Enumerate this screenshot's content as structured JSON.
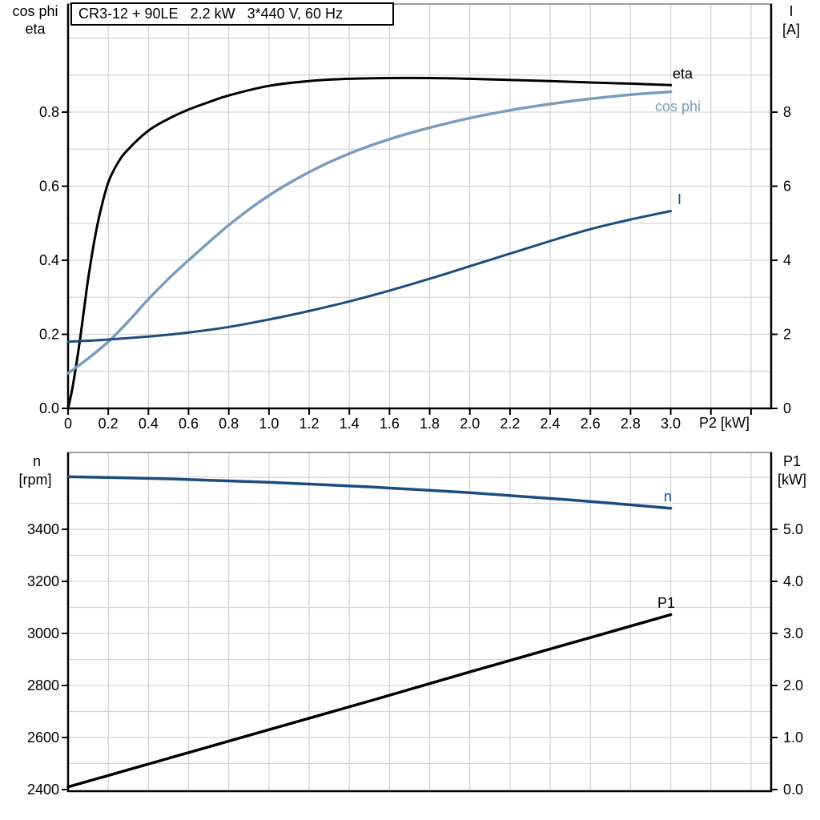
{
  "colors": {
    "black": "#000000",
    "light_blue": "#7b9cbd",
    "dark_blue": "#1b4d7c",
    "grid": "#d6d6d6",
    "frame_top": "#808080",
    "axis": "#000000"
  },
  "chart_data": [
    {
      "type": "line",
      "title": "CR3-12 + 90LE   2.2 kW   3*440 V, 60 Hz",
      "xlabel": "P2 [kW]",
      "xlim": [
        0,
        3.5
      ],
      "grid": true,
      "x_ticks": [
        0,
        0.2,
        0.4,
        0.6,
        0.8,
        1.0,
        1.2,
        1.4,
        1.6,
        1.8,
        2.0,
        2.2,
        2.4,
        2.6,
        2.8,
        3.0
      ],
      "x_tick_labels": [
        "0",
        "0.2",
        "0.4",
        "0.6",
        "0.8",
        "1.0",
        "1.2",
        "1.4",
        "1.6",
        "1.8",
        "2.0",
        "2.2",
        "2.4",
        "2.6",
        "2.8",
        "3.0"
      ],
      "x_unlabeled_ticks": [
        3.2,
        3.4
      ],
      "left_axis": {
        "title_lines": [
          "cos phi",
          "eta"
        ],
        "ticks": [
          0.0,
          0.2,
          0.4,
          0.6,
          0.8
        ],
        "tick_labels": [
          "0.0",
          "0.2",
          "0.4",
          "0.6",
          "0.8"
        ],
        "minor_grid_step": 0.1,
        "lim": [
          0,
          1.092
        ]
      },
      "right_axis": {
        "title_lines": [
          "I",
          "[A]"
        ],
        "ticks": [
          0,
          2,
          4,
          6,
          8
        ],
        "tick_labels": [
          "0",
          "2",
          "4",
          "6",
          "8"
        ],
        "lim": [
          0,
          10.92
        ]
      },
      "series": [
        {
          "name": "eta",
          "axis": "left",
          "color": "#000000",
          "width": 3,
          "x": [
            0,
            0.02,
            0.05,
            0.08,
            0.1,
            0.13,
            0.16,
            0.2,
            0.25,
            0.3,
            0.4,
            0.5,
            0.6,
            0.7,
            0.8,
            1.0,
            1.2,
            1.4,
            1.6,
            1.8,
            2.0,
            2.2,
            2.4,
            2.6,
            2.8,
            3.0
          ],
          "y": [
            0,
            0.05,
            0.15,
            0.27,
            0.35,
            0.45,
            0.53,
            0.61,
            0.665,
            0.7,
            0.75,
            0.782,
            0.807,
            0.827,
            0.845,
            0.871,
            0.884,
            0.89,
            0.892,
            0.892,
            0.89,
            0.887,
            0.884,
            0.88,
            0.877,
            0.873
          ]
        },
        {
          "name": "cos phi",
          "axis": "left",
          "color": "#7b9cbd",
          "width": 3.5,
          "x": [
            0,
            0.1,
            0.2,
            0.3,
            0.4,
            0.5,
            0.6,
            0.8,
            1.0,
            1.2,
            1.4,
            1.6,
            1.8,
            2.0,
            2.2,
            2.4,
            2.6,
            2.8,
            3.0
          ],
          "y": [
            0.095,
            0.135,
            0.18,
            0.235,
            0.295,
            0.35,
            0.4,
            0.495,
            0.575,
            0.638,
            0.688,
            0.727,
            0.758,
            0.784,
            0.805,
            0.822,
            0.836,
            0.847,
            0.855
          ]
        },
        {
          "name": "I",
          "axis": "right",
          "color": "#1b4d7c",
          "width": 3,
          "x": [
            0,
            0.2,
            0.4,
            0.6,
            0.8,
            1.0,
            1.2,
            1.4,
            1.6,
            1.8,
            2.0,
            2.2,
            2.4,
            2.6,
            2.8,
            3.0
          ],
          "y": [
            1.8,
            1.86,
            1.94,
            2.05,
            2.2,
            2.4,
            2.63,
            2.89,
            3.18,
            3.5,
            3.84,
            4.18,
            4.52,
            4.84,
            5.1,
            5.33
          ]
        }
      ]
    },
    {
      "type": "line",
      "title": "",
      "xlabel": "",
      "xlim": [
        0,
        3.5
      ],
      "grid": true,
      "left_axis": {
        "title_lines": [
          "n",
          "[rpm]"
        ],
        "ticks": [
          2400,
          2600,
          2800,
          3000,
          3200,
          3400
        ],
        "tick_labels": [
          "2400",
          "2600",
          "2800",
          "3000",
          "3200",
          "3400"
        ],
        "minor_grid_step": 100,
        "lim": [
          2393.8,
          3695.4
        ]
      },
      "right_axis": {
        "title_lines": [
          "P1",
          "[kW]"
        ],
        "ticks": [
          0,
          1,
          2,
          3,
          4,
          5
        ],
        "tick_labels": [
          "0.0",
          "1.0",
          "2.0",
          "3.0",
          "4.0",
          "5.0"
        ],
        "minor_grid_step": 0.5,
        "lim": [
          -0.031,
          6.477
        ]
      },
      "series": [
        {
          "name": "n",
          "axis": "left",
          "color": "#1b4d7c",
          "width": 3.5,
          "x": [
            0,
            0.5,
            1.0,
            1.5,
            2.0,
            2.5,
            3.0
          ],
          "y": [
            3602,
            3594,
            3581,
            3563,
            3541,
            3513,
            3481
          ]
        },
        {
          "name": "P1",
          "axis": "right",
          "color": "#000000",
          "width": 3.5,
          "x": [
            0,
            0.5,
            1.0,
            1.5,
            2.0,
            2.5,
            3.0
          ],
          "y": [
            0.05,
            0.6,
            1.15,
            1.7,
            2.26,
            2.81,
            3.36
          ]
        }
      ]
    }
  ]
}
